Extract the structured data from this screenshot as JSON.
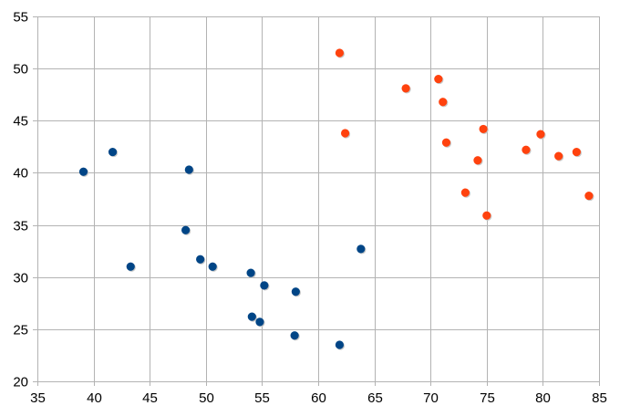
{
  "chart_data": {
    "type": "scatter",
    "title": "",
    "xlabel": "",
    "ylabel": "",
    "xlim": [
      35,
      85
    ],
    "ylim": [
      20,
      55
    ],
    "x_ticks": [
      35,
      40,
      45,
      50,
      55,
      60,
      65,
      70,
      75,
      80,
      85
    ],
    "y_ticks": [
      20,
      25,
      30,
      35,
      40,
      45,
      50,
      55
    ],
    "grid": true,
    "legend": "none",
    "series": [
      {
        "color": "#004586",
        "points": [
          {
            "x": 39.1,
            "y": 40.1
          },
          {
            "x": 41.7,
            "y": 42.0
          },
          {
            "x": 43.3,
            "y": 31.0
          },
          {
            "x": 48.2,
            "y": 34.5
          },
          {
            "x": 48.5,
            "y": 40.3
          },
          {
            "x": 49.5,
            "y": 31.7
          },
          {
            "x": 50.6,
            "y": 31.0
          },
          {
            "x": 54.0,
            "y": 30.4
          },
          {
            "x": 55.2,
            "y": 29.2
          },
          {
            "x": 54.1,
            "y": 26.2
          },
          {
            "x": 54.8,
            "y": 25.7
          },
          {
            "x": 58.0,
            "y": 28.6
          },
          {
            "x": 57.9,
            "y": 24.4
          },
          {
            "x": 61.9,
            "y": 23.5
          },
          {
            "x": 63.8,
            "y": 32.7
          }
        ]
      },
      {
        "color": "#ff420e",
        "points": [
          {
            "x": 61.9,
            "y": 51.5
          },
          {
            "x": 62.4,
            "y": 43.8
          },
          {
            "x": 67.8,
            "y": 48.1
          },
          {
            "x": 70.7,
            "y": 49.0
          },
          {
            "x": 71.1,
            "y": 46.8
          },
          {
            "x": 71.4,
            "y": 42.9
          },
          {
            "x": 73.1,
            "y": 38.1
          },
          {
            "x": 74.2,
            "y": 41.2
          },
          {
            "x": 74.7,
            "y": 44.2
          },
          {
            "x": 75.0,
            "y": 35.9
          },
          {
            "x": 78.5,
            "y": 42.2
          },
          {
            "x": 79.8,
            "y": 43.7
          },
          {
            "x": 81.4,
            "y": 41.6
          },
          {
            "x": 83.0,
            "y": 42.0
          },
          {
            "x": 84.1,
            "y": 37.8
          }
        ]
      }
    ]
  }
}
